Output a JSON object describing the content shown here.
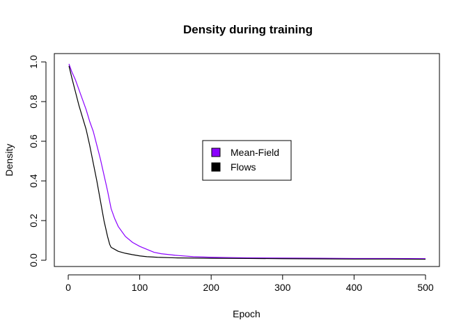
{
  "chart_data": {
    "type": "line",
    "title": "Density during training",
    "xlabel": "Epoch",
    "ylabel": "Density",
    "xlim": [
      0,
      500
    ],
    "ylim": [
      0.0,
      1.0
    ],
    "xticks": [
      0,
      100,
      200,
      300,
      400,
      500
    ],
    "xtick_labels": [
      "0",
      "100",
      "200",
      "300",
      "400",
      "500"
    ],
    "yticks": [
      0.0,
      0.2,
      0.4,
      0.6,
      0.8,
      1.0
    ],
    "ytick_labels": [
      "0.0",
      "0.2",
      "0.4",
      "0.6",
      "0.8",
      "1.0"
    ],
    "grid": false,
    "legend_position": "center",
    "series": [
      {
        "name": "Mean-Field",
        "color": "#8b00ff",
        "x": [
          1,
          5,
          10,
          15,
          20,
          25,
          30,
          35,
          40,
          45,
          50,
          55,
          60,
          65,
          70,
          80,
          90,
          100,
          110,
          120,
          130,
          150,
          175,
          200,
          250,
          300,
          350,
          400,
          450,
          500
        ],
        "y": [
          0.99,
          0.95,
          0.91,
          0.86,
          0.81,
          0.76,
          0.7,
          0.65,
          0.58,
          0.51,
          0.43,
          0.35,
          0.26,
          0.21,
          0.17,
          0.12,
          0.09,
          0.07,
          0.055,
          0.04,
          0.033,
          0.025,
          0.018,
          0.015,
          0.012,
          0.011,
          0.01,
          0.009,
          0.009,
          0.008
        ]
      },
      {
        "name": "Flows",
        "color": "#000000",
        "x": [
          1,
          5,
          10,
          15,
          20,
          25,
          30,
          35,
          40,
          45,
          50,
          55,
          58,
          60,
          65,
          70,
          80,
          90,
          100,
          110,
          125,
          150,
          200,
          250,
          300,
          350,
          400,
          450,
          500
        ],
        "y": [
          0.98,
          0.92,
          0.85,
          0.78,
          0.72,
          0.66,
          0.58,
          0.49,
          0.4,
          0.3,
          0.2,
          0.12,
          0.08,
          0.065,
          0.055,
          0.045,
          0.035,
          0.028,
          0.022,
          0.018,
          0.015,
          0.012,
          0.01,
          0.009,
          0.008,
          0.007,
          0.006,
          0.006,
          0.005
        ]
      }
    ]
  }
}
